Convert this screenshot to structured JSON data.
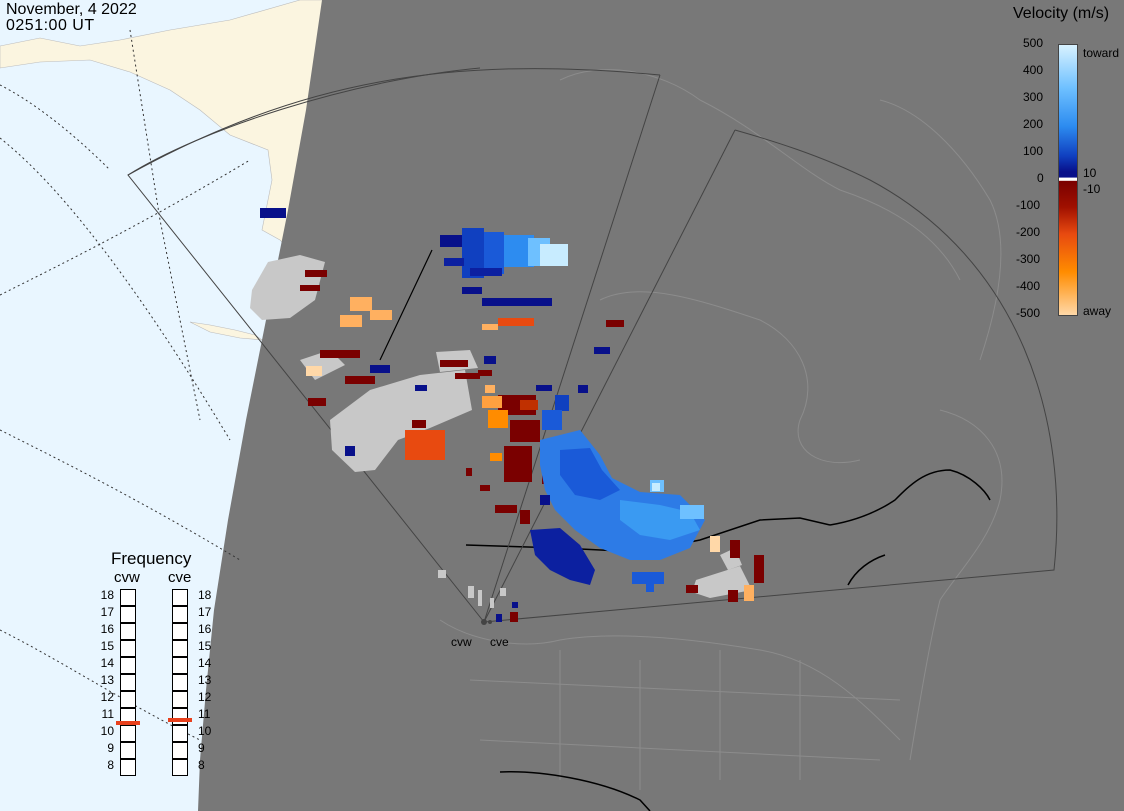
{
  "header": {
    "date": "November, 4 2022",
    "time": "0251:00 UT"
  },
  "velocity_scale": {
    "title": "Velocity (m/s)",
    "ticks": [
      "500",
      "400",
      "300",
      "200",
      "100",
      "0",
      "-100",
      "-200",
      "-300",
      "-400",
      "-500"
    ],
    "extra_labels": {
      "toward": "toward",
      "away": "away",
      "pos_threshold": "10",
      "neg_threshold": "-10"
    },
    "colors": {
      "toward_top": "#c8ecff",
      "toward_mid": "#2d8cf0",
      "toward_low": "#08108a",
      "away_low": "#7a0000",
      "away_mid": "#e84a10",
      "away_top": "#ffd8a8",
      "zero_band": "#ffffff"
    }
  },
  "frequency": {
    "title": "Frequency",
    "radars": [
      {
        "name": "cvw",
        "value_mhz": 10.6
      },
      {
        "name": "cve",
        "value_mhz": 10.8
      }
    ],
    "levels": [
      "18",
      "17",
      "16",
      "15",
      "14",
      "13",
      "12",
      "11",
      "10",
      "9",
      "8"
    ]
  },
  "radar_sites": [
    {
      "name": "cvw"
    },
    {
      "name": "cve"
    }
  ],
  "map_colors": {
    "ocean": "#e9f6ff",
    "land_outside": "#fbf5e0",
    "night": "#787878",
    "ground_scatter": "#c8c8c8"
  }
}
